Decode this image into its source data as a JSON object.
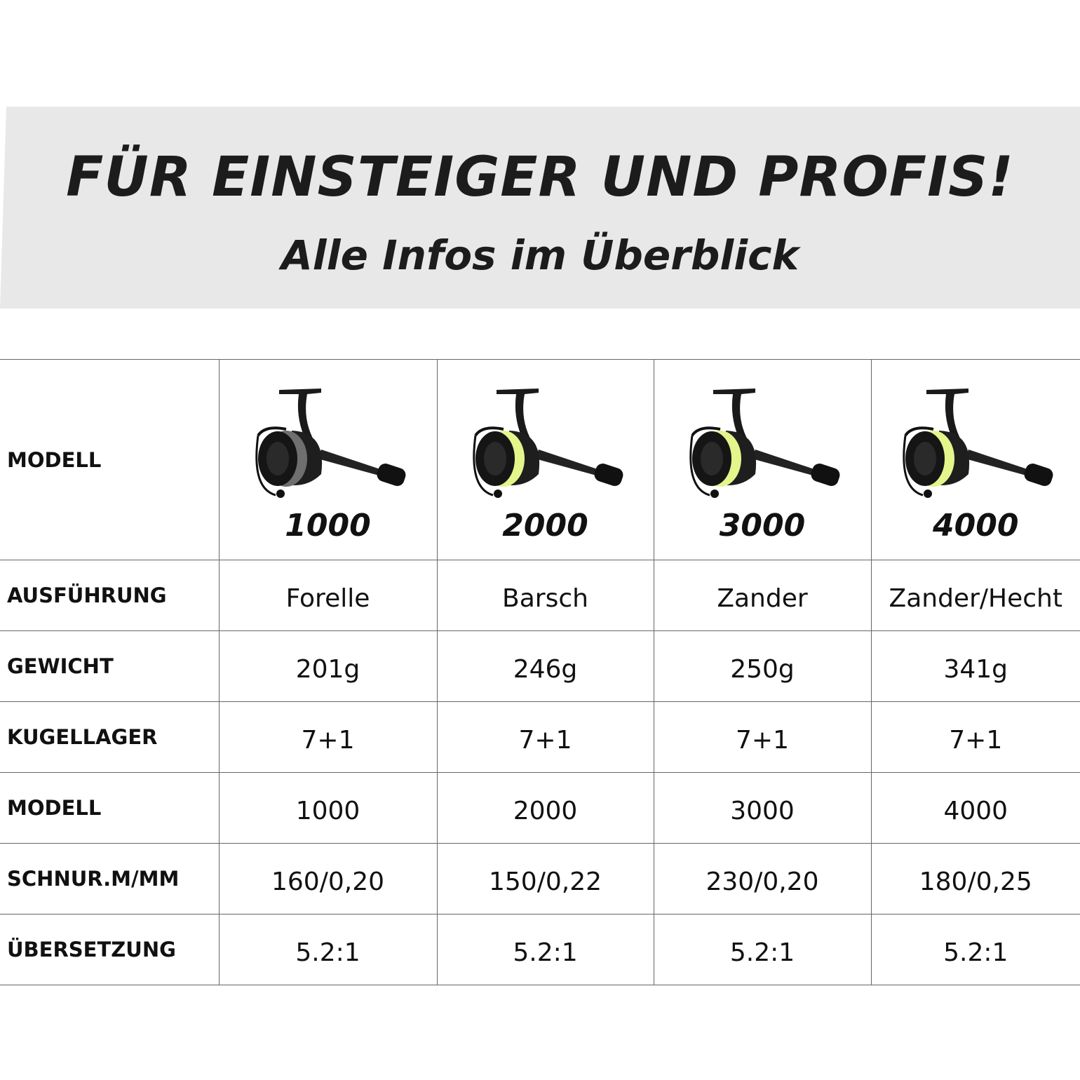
{
  "banner": {
    "title": "FÜR EINSTEIGER UND PROFIS!",
    "subtitle": "Alle Infos im Überblick",
    "background": "#e8e8e8"
  },
  "table": {
    "header_label": "MODELL",
    "models": [
      {
        "number": "1000",
        "spool_color": "#6f6f6f"
      },
      {
        "number": "2000",
        "spool_color": "#e4f58c"
      },
      {
        "number": "3000",
        "spool_color": "#e4f58c"
      },
      {
        "number": "4000",
        "spool_color": "#e4f58c"
      }
    ],
    "rows": [
      {
        "label": "AUSFÜHRUNG",
        "values": [
          "Forelle",
          "Barsch",
          "Zander",
          "Zander/Hecht"
        ]
      },
      {
        "label": "GEWICHT",
        "values": [
          "201g",
          "246g",
          "250g",
          "341g"
        ]
      },
      {
        "label": "KUGELLAGER",
        "values": [
          "7+1",
          "7+1",
          "7+1",
          "7+1"
        ]
      },
      {
        "label": "MODELL",
        "values": [
          "1000",
          "2000",
          "3000",
          "4000"
        ]
      },
      {
        "label": "SCHNUR.M/MM",
        "values": [
          "160/0,20",
          "150/0,22",
          "230/0,20",
          "180/0,25"
        ]
      },
      {
        "label": "ÜBERSETZUNG",
        "values": [
          "5.2:1",
          "5.2:1",
          "5.2:1",
          "5.2:1"
        ]
      }
    ]
  }
}
